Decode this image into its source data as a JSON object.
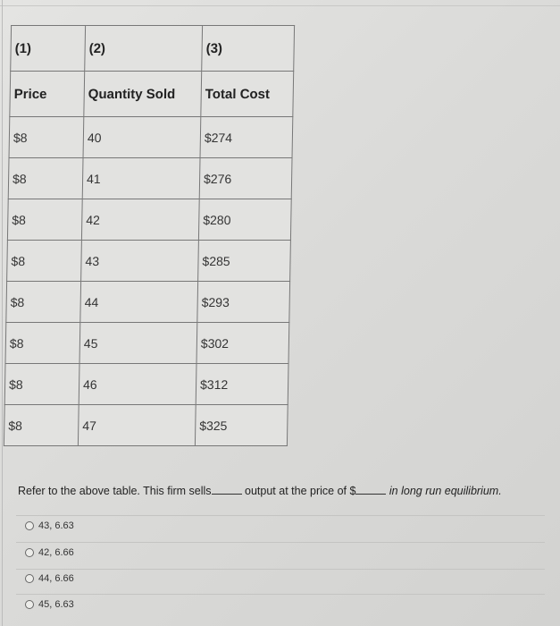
{
  "table": {
    "col_numbers": [
      "(1)",
      "(2)",
      "(3)"
    ],
    "headers": [
      "Price",
      "Quantity Sold",
      "Total Cost"
    ],
    "rows": [
      [
        "$8",
        "40",
        "$274"
      ],
      [
        "$8",
        "41",
        "$276"
      ],
      [
        "$8",
        "42",
        "$280"
      ],
      [
        "$8",
        "43",
        "$285"
      ],
      [
        "$8",
        "44",
        "$293"
      ],
      [
        "$8",
        "45",
        "$302"
      ],
      [
        "$8",
        "46",
        "$312"
      ],
      [
        "$8",
        "47",
        "$325"
      ]
    ]
  },
  "question": {
    "part1": "Refer to the above table. This firm sells",
    "part2": "output at the price of $",
    "part3": "in long run equilibrium."
  },
  "options": [
    "43, 6.63",
    "42, 6.66",
    "44, 6.66",
    "45, 6.63"
  ]
}
